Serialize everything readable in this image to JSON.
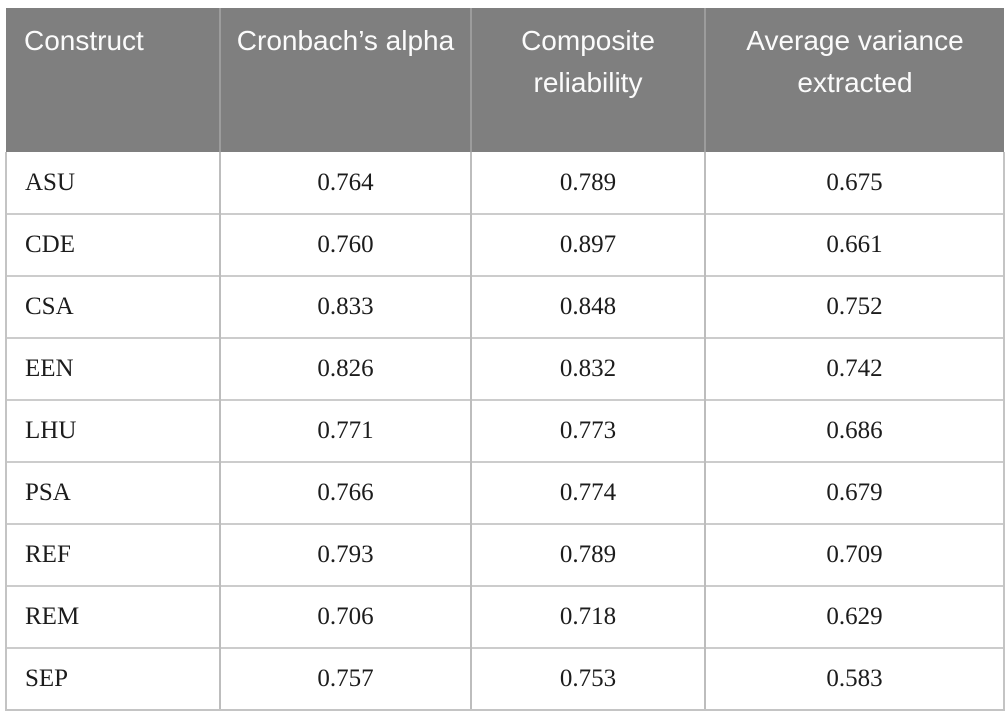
{
  "table": {
    "columns": [
      {
        "key": "construct",
        "label": "Construct"
      },
      {
        "key": "cronbachs_alpha",
        "label": "Cronbach’s alpha"
      },
      {
        "key": "composite_reliability",
        "label": "Composite reliability"
      },
      {
        "key": "average_variance_extracted",
        "label": "Average variance extracted"
      }
    ],
    "rows": [
      {
        "construct": "ASU",
        "cronbachs_alpha": "0.764",
        "composite_reliability": "0.789",
        "average_variance_extracted": "0.675"
      },
      {
        "construct": "CDE",
        "cronbachs_alpha": "0.760",
        "composite_reliability": "0.897",
        "average_variance_extracted": "0.661"
      },
      {
        "construct": "CSA",
        "cronbachs_alpha": "0.833",
        "composite_reliability": "0.848",
        "average_variance_extracted": "0.752"
      },
      {
        "construct": "EEN",
        "cronbachs_alpha": "0.826",
        "composite_reliability": "0.832",
        "average_variance_extracted": "0.742"
      },
      {
        "construct": "LHU",
        "cronbachs_alpha": "0.771",
        "composite_reliability": "0.773",
        "average_variance_extracted": "0.686"
      },
      {
        "construct": "PSA",
        "cronbachs_alpha": "0.766",
        "composite_reliability": "0.774",
        "average_variance_extracted": "0.679"
      },
      {
        "construct": "REF",
        "cronbachs_alpha": "0.793",
        "composite_reliability": "0.789",
        "average_variance_extracted": "0.709"
      },
      {
        "construct": "REM",
        "cronbachs_alpha": "0.706",
        "composite_reliability": "0.718",
        "average_variance_extracted": "0.629"
      },
      {
        "construct": "SEP",
        "cronbachs_alpha": "0.757",
        "composite_reliability": "0.753",
        "average_variance_extracted": "0.583"
      }
    ]
  },
  "colors": {
    "header_bg": "#7f7f7f",
    "header_text": "#fbfbfb",
    "body_text": "#1c1c1c",
    "grid_line": "#c4c4c4"
  },
  "chart_data": {
    "type": "table",
    "columns": [
      "Construct",
      "Cronbach's alpha",
      "Composite reliability",
      "Average variance extracted"
    ],
    "rows": [
      [
        "ASU",
        0.764,
        0.789,
        0.675
      ],
      [
        "CDE",
        0.76,
        0.897,
        0.661
      ],
      [
        "CSA",
        0.833,
        0.848,
        0.752
      ],
      [
        "EEN",
        0.826,
        0.832,
        0.742
      ],
      [
        "LHU",
        0.771,
        0.773,
        0.686
      ],
      [
        "PSA",
        0.766,
        0.774,
        0.679
      ],
      [
        "REF",
        0.793,
        0.789,
        0.709
      ],
      [
        "REM",
        0.706,
        0.718,
        0.629
      ],
      [
        "SEP",
        0.757,
        0.753,
        0.583
      ]
    ]
  }
}
